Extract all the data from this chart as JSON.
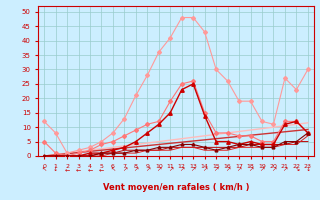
{
  "x": [
    0,
    1,
    2,
    3,
    4,
    5,
    6,
    7,
    8,
    9,
    10,
    11,
    12,
    13,
    14,
    15,
    16,
    17,
    18,
    19,
    20,
    21,
    22,
    23
  ],
  "series": [
    {
      "name": "light_pink_top",
      "color": "#ff9999",
      "lw": 0.8,
      "marker": "D",
      "ms": 2.0,
      "values": [
        12,
        8,
        1,
        2,
        3,
        5,
        8,
        13,
        21,
        28,
        36,
        41,
        48,
        48,
        43,
        30,
        26,
        19,
        19,
        12,
        11,
        27,
        23,
        30
      ]
    },
    {
      "name": "medium_pink",
      "color": "#ff7777",
      "lw": 0.8,
      "marker": "D",
      "ms": 2.0,
      "values": [
        5,
        1,
        0,
        1,
        2,
        4,
        5,
        7,
        9,
        11,
        12,
        19,
        25,
        26,
        15,
        8,
        8,
        7,
        7,
        5,
        5,
        12,
        12,
        8
      ]
    },
    {
      "name": "linear_light",
      "color": "#ffbbbb",
      "lw": 1.0,
      "marker": null,
      "ms": 0,
      "values": [
        0,
        0.5,
        1.0,
        1.5,
        2.0,
        2.5,
        3.0,
        3.5,
        4.0,
        4.5,
        5.0,
        5.5,
        6.0,
        6.5,
        7.0,
        7.5,
        8.0,
        8.5,
        9.0,
        9.5,
        10.0,
        10.5,
        11.0,
        11.5
      ]
    },
    {
      "name": "linear_dark",
      "color": "#cc3333",
      "lw": 1.0,
      "marker": null,
      "ms": 0,
      "values": [
        0,
        0.4,
        0.8,
        1.2,
        1.6,
        2.0,
        2.4,
        2.8,
        3.2,
        3.6,
        4.0,
        4.4,
        4.8,
        5.2,
        5.6,
        6.0,
        6.4,
        6.8,
        7.2,
        7.6,
        8.0,
        8.4,
        8.8,
        9.2
      ]
    },
    {
      "name": "red_main",
      "color": "#cc0000",
      "lw": 1.0,
      "marker": "^",
      "ms": 2.5,
      "values": [
        0,
        0,
        0,
        0,
        1,
        1,
        2,
        3,
        5,
        8,
        11,
        15,
        23,
        25,
        14,
        5,
        5,
        4,
        5,
        4,
        4,
        11,
        12,
        8
      ]
    },
    {
      "name": "dark_red_low",
      "color": "#880000",
      "lw": 0.8,
      "marker": "^",
      "ms": 2.0,
      "values": [
        0,
        0,
        0,
        0,
        0,
        1,
        1,
        1,
        2,
        2,
        3,
        3,
        4,
        4,
        3,
        2,
        3,
        4,
        4,
        3,
        3,
        5,
        5,
        8
      ]
    },
    {
      "name": "flat_red1",
      "color": "#bb0000",
      "lw": 0.7,
      "marker": null,
      "ms": 0,
      "values": [
        0,
        0,
        0,
        0,
        0,
        1,
        1,
        2,
        2,
        2,
        2,
        3,
        3,
        3,
        3,
        3,
        3,
        3,
        4,
        4,
        4,
        4,
        5,
        5
      ]
    },
    {
      "name": "flat_red2",
      "color": "#dd2222",
      "lw": 0.7,
      "marker": null,
      "ms": 0,
      "values": [
        0,
        0,
        0,
        0,
        0,
        0,
        1,
        1,
        1,
        2,
        2,
        2,
        3,
        3,
        2,
        2,
        2,
        3,
        3,
        3,
        3,
        4,
        4,
        7
      ]
    }
  ],
  "arrows": [
    "↖",
    "↓",
    "←",
    "←",
    "←",
    "←",
    "↖",
    "↗",
    "↗",
    "↗",
    "↗",
    "↗",
    "↗",
    "↗",
    "↗",
    "↗",
    "↗",
    "↗",
    "↗",
    "↗",
    "↗",
    "↗",
    "↘",
    "↓"
  ],
  "xlabel": "Vent moyen/en rafales ( km/h )",
  "xlim": [
    -0.5,
    23.5
  ],
  "ylim": [
    0,
    52
  ],
  "yticks": [
    0,
    5,
    10,
    15,
    20,
    25,
    30,
    35,
    40,
    45,
    50
  ],
  "xticks": [
    0,
    1,
    2,
    3,
    4,
    5,
    6,
    7,
    8,
    9,
    10,
    11,
    12,
    13,
    14,
    15,
    16,
    17,
    18,
    19,
    20,
    21,
    22,
    23
  ],
  "bg_color": "#cceeff",
  "grid_color": "#99cccc",
  "axis_color": "#cc0000",
  "tick_color": "#cc0000",
  "label_color": "#cc0000"
}
